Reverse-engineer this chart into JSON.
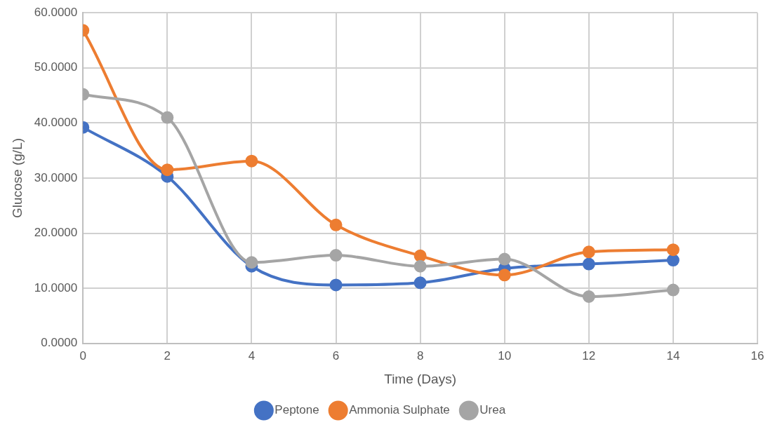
{
  "chart_data": {
    "type": "line",
    "xlabel": "Time (Days)",
    "ylabel": "Glucose (g/L)",
    "x": [
      0,
      2,
      4,
      6,
      8,
      10,
      12,
      14
    ],
    "series": [
      {
        "name": "Peptone",
        "color": "#4472c4",
        "values": [
          39.2,
          30.3,
          14.0,
          10.6,
          11.0,
          13.6,
          14.4,
          15.1
        ]
      },
      {
        "name": "Ammonia Sulphate",
        "color": "#ed7d31",
        "values": [
          56.8,
          31.5,
          33.1,
          21.5,
          15.9,
          12.4,
          16.6,
          17.0
        ]
      },
      {
        "name": "Urea",
        "color": "#a5a5a5",
        "values": [
          45.2,
          41.0,
          14.7,
          16.0,
          14.0,
          15.3,
          8.5,
          9.7
        ]
      }
    ],
    "xlim": [
      0,
      16
    ],
    "xticks": [
      0,
      2,
      4,
      6,
      8,
      10,
      12,
      14,
      16
    ],
    "ylim": [
      0,
      60
    ],
    "yticks": [
      {
        "value": 0,
        "label": "0.0000"
      },
      {
        "value": 10,
        "label": "10.0000"
      },
      {
        "value": 20,
        "label": "20.0000"
      },
      {
        "value": 30,
        "label": "30.0000"
      },
      {
        "value": 40,
        "label": "40.0000"
      },
      {
        "value": 50,
        "label": "50.0000"
      },
      {
        "value": 60,
        "label": "60.0000"
      }
    ],
    "grid": true,
    "legend": "bottom",
    "marker": "circle",
    "line_style": "solid"
  }
}
